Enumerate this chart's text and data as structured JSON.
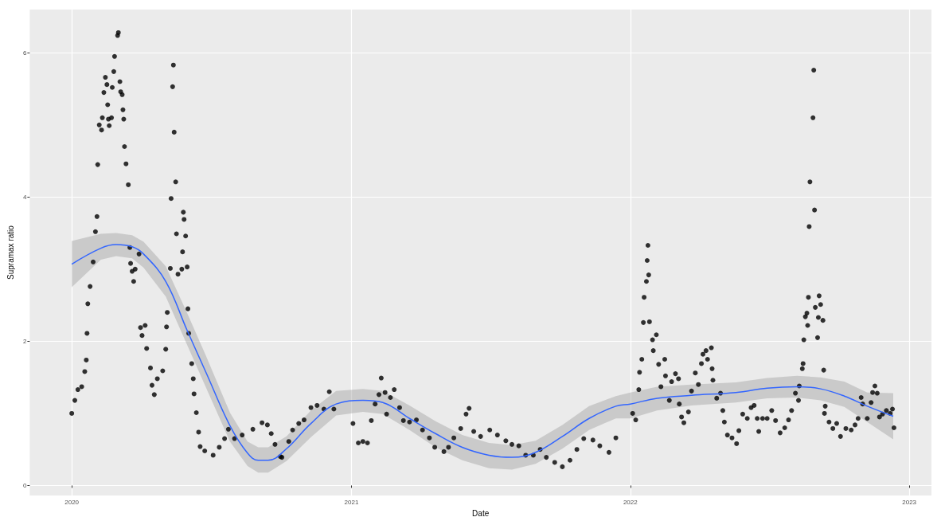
{
  "chart_data": {
    "type": "scatter",
    "xlabel": "Date",
    "ylabel": "Supramax ratio",
    "grid": true,
    "xlim": [
      "2019-11-07",
      "2023-01-30"
    ],
    "xticks": [
      "2020",
      "2021",
      "2022",
      "2023"
    ],
    "ylim": [
      -0.14,
      6.6
    ],
    "yticks": [
      0,
      2,
      4,
      6
    ],
    "x": [
      "2020-01-01",
      "2020-01-05",
      "2020-01-09",
      "2020-01-14",
      "2020-01-18",
      "2020-01-20",
      "2020-01-21",
      "2020-01-22",
      "2020-01-25",
      "2020-01-29",
      "2020-02-01",
      "2020-02-03",
      "2020-02-04",
      "2020-02-06",
      "2020-02-09",
      "2020-02-10",
      "2020-02-12",
      "2020-02-14",
      "2020-02-16",
      "2020-02-17",
      "2020-02-18",
      "2020-02-19",
      "2020-02-22",
      "2020-02-23",
      "2020-02-25",
      "2020-02-26",
      "2020-03-01",
      "2020-03-02",
      "2020-03-04",
      "2020-03-05",
      "2020-03-07",
      "2020-03-08",
      "2020-03-09",
      "2020-03-10",
      "2020-03-12",
      "2020-03-15",
      "2020-03-17",
      "2020-03-18",
      "2020-03-20",
      "2020-03-22",
      "2020-03-24",
      "2020-03-29",
      "2020-03-31",
      "2020-04-02",
      "2020-04-06",
      "2020-04-08",
      "2020-04-13",
      "2020-04-15",
      "2020-04-18",
      "2020-04-22",
      "2020-04-29",
      "2020-05-03",
      "2020-05-04",
      "2020-05-05",
      "2020-05-10",
      "2020-05-12",
      "2020-05-13",
      "2020-05-14",
      "2020-05-16",
      "2020-05-17",
      "2020-05-09",
      "2020-05-19",
      "2020-05-24",
      "2020-05-26",
      "2020-05-27",
      "2020-05-25",
      "2020-05-29",
      "2020-05-31",
      "2020-06-01",
      "2020-06-02",
      "2020-06-06",
      "2020-06-08",
      "2020-06-09",
      "2020-06-12",
      "2020-06-15",
      "2020-06-17",
      "2020-06-23",
      "2020-07-04",
      "2020-07-12",
      "2020-07-19",
      "2020-07-24",
      "2020-08-01",
      "2020-08-11",
      "2020-08-25",
      "2020-09-06",
      "2020-09-13",
      "2020-09-18",
      "2020-09-23",
      "2020-09-30",
      "2020-10-02",
      "2020-10-11",
      "2020-10-16",
      "2020-10-24",
      "2020-10-31",
      "2020-11-09",
      "2020-11-17",
      "2020-11-26",
      "2020-12-03",
      "2020-12-09",
      "2021-01-03",
      "2021-01-10",
      "2021-01-16",
      "2021-01-22",
      "2021-01-27",
      "2021-02-01",
      "2021-02-06",
      "2021-02-09",
      "2021-02-14",
      "2021-02-16",
      "2021-02-21",
      "2021-02-26",
      "2021-03-05",
      "2021-03-10",
      "2021-03-18",
      "2021-03-27",
      "2021-04-04",
      "2021-04-13",
      "2021-04-20",
      "2021-05-02",
      "2021-05-08",
      "2021-05-15",
      "2021-05-24",
      "2021-05-31",
      "2021-06-04",
      "2021-06-10",
      "2021-06-19",
      "2021-07-01",
      "2021-07-11",
      "2021-07-22",
      "2021-07-30",
      "2021-08-08",
      "2021-08-17",
      "2021-08-27",
      "2021-09-05",
      "2021-09-13",
      "2021-09-24",
      "2021-10-04",
      "2021-10-14",
      "2021-10-23",
      "2021-11-01",
      "2021-11-13",
      "2021-11-22",
      "2021-12-04",
      "2021-12-13",
      "2022-01-04",
      "2022-01-08",
      "2022-01-12",
      "2022-01-13",
      "2022-01-16",
      "2022-01-18",
      "2022-01-19",
      "2022-01-22",
      "2022-01-23",
      "2022-01-24",
      "2022-01-25",
      "2022-01-26",
      "2022-01-30",
      "2022-01-31",
      "2022-02-04",
      "2022-02-07",
      "2022-02-10",
      "2022-02-15",
      "2022-02-16",
      "2022-02-21",
      "2022-02-24",
      "2022-03-01",
      "2022-03-05",
      "2022-03-06",
      "2022-03-09",
      "2022-03-12",
      "2022-03-18",
      "2022-03-22",
      "2022-03-27",
      "2022-03-31",
      "2022-04-04",
      "2022-04-06",
      "2022-04-10",
      "2022-04-12",
      "2022-04-17",
      "2022-04-18",
      "2022-04-19",
      "2022-04-24",
      "2022-04-29",
      "2022-05-02",
      "2022-05-04",
      "2022-05-08",
      "2022-05-14",
      "2022-05-20",
      "2022-05-23",
      "2022-05-28",
      "2022-06-03",
      "2022-06-08",
      "2022-06-12",
      "2022-06-16",
      "2022-06-18",
      "2022-06-23",
      "2022-06-29",
      "2022-07-05",
      "2022-07-10",
      "2022-07-16",
      "2022-07-22",
      "2022-07-27",
      "2022-07-31",
      "2022-08-05",
      "2022-08-09",
      "2022-08-10",
      "2022-08-14",
      "2022-08-15",
      "2022-08-16",
      "2022-08-18",
      "2022-08-20",
      "2022-08-22",
      "2022-08-21",
      "2022-08-23",
      "2022-08-24",
      "2022-08-28",
      "2022-08-29",
      "2022-08-30",
      "2022-08-31",
      "2022-09-03",
      "2022-09-04",
      "2022-09-05",
      "2022-09-07",
      "2022-09-10",
      "2022-09-11",
      "2022-09-13",
      "2022-09-12",
      "2022-09-18",
      "2022-09-23",
      "2022-09-28",
      "2022-10-03",
      "2022-10-10",
      "2022-10-17",
      "2022-10-22",
      "2022-10-26",
      "2022-10-30",
      "2022-11-01",
      "2022-11-07",
      "2022-11-12",
      "2022-11-14",
      "2022-11-17",
      "2022-11-20",
      "2022-11-23",
      "2022-11-27",
      "2022-12-02",
      "2022-12-07",
      "2022-12-10",
      "2022-12-12"
    ],
    "series": [
      {
        "color": "#000000",
        "marker": "circle",
        "values": [
          1.0,
          1.18,
          1.33,
          1.37,
          1.58,
          1.74,
          2.11,
          2.52,
          2.76,
          3.1,
          3.52,
          3.73,
          4.45,
          5.0,
          4.93,
          5.1,
          5.45,
          5.66,
          5.56,
          5.28,
          5.08,
          4.99,
          5.1,
          5.52,
          5.74,
          5.95,
          6.24,
          6.28,
          5.6,
          5.46,
          5.42,
          5.21,
          5.08,
          4.7,
          4.46,
          4.17,
          3.3,
          3.08,
          2.97,
          2.83,
          3.0,
          3.21,
          2.19,
          2.08,
          2.22,
          1.9,
          1.63,
          1.39,
          1.26,
          1.48,
          1.59,
          1.89,
          2.2,
          2.4,
          3.98,
          5.53,
          5.83,
          4.9,
          4.21,
          3.49,
          3.01,
          2.93,
          3.0,
          3.79,
          3.69,
          3.24,
          3.46,
          3.03,
          2.45,
          2.11,
          1.69,
          1.48,
          1.27,
          1.01,
          0.74,
          0.54,
          0.48,
          0.42,
          0.53,
          0.65,
          0.78,
          0.65,
          0.7,
          0.78,
          0.87,
          0.84,
          0.72,
          0.57,
          0.4,
          0.39,
          0.61,
          0.77,
          0.86,
          0.91,
          1.08,
          1.11,
          1.06,
          1.3,
          1.06,
          0.86,
          0.59,
          0.61,
          0.59,
          0.9,
          1.13,
          1.26,
          1.49,
          1.29,
          0.99,
          1.22,
          1.33,
          1.08,
          0.9,
          0.88,
          0.91,
          0.77,
          0.66,
          0.53,
          0.47,
          0.53,
          0.66,
          0.79,
          0.99,
          1.07,
          0.75,
          0.68,
          0.77,
          0.7,
          0.62,
          0.57,
          0.55,
          0.42,
          0.42,
          0.5,
          0.39,
          0.32,
          0.26,
          0.35,
          0.5,
          0.65,
          0.63,
          0.55,
          0.46,
          0.66,
          1.0,
          0.91,
          1.33,
          1.57,
          1.75,
          2.26,
          2.61,
          2.83,
          3.12,
          3.33,
          2.92,
          2.27,
          2.02,
          1.87,
          2.09,
          1.68,
          1.37,
          1.75,
          1.52,
          1.18,
          1.44,
          1.55,
          1.48,
          1.13,
          0.95,
          0.87,
          1.02,
          1.31,
          1.56,
          1.4,
          1.69,
          1.82,
          1.87,
          1.75,
          1.91,
          1.62,
          1.46,
          1.21,
          1.28,
          1.04,
          0.88,
          0.7,
          0.66,
          0.58,
          0.76,
          0.99,
          0.93,
          1.08,
          1.11,
          0.93,
          0.75,
          0.93,
          0.93,
          1.04,
          0.9,
          0.73,
          0.8,
          0.91,
          1.04,
          1.28,
          1.18,
          1.38,
          1.62,
          1.69,
          2.02,
          2.34,
          2.39,
          2.61,
          2.22,
          3.59,
          4.21,
          5.1,
          5.76,
          3.82,
          2.47,
          2.05,
          2.33,
          2.63,
          2.51,
          2.29,
          1.6,
          1.1,
          1.0,
          0.88,
          0.79,
          0.86,
          0.68,
          0.79,
          0.77,
          0.84,
          0.93,
          1.22,
          1.13,
          0.93,
          1.15,
          1.29,
          1.38,
          1.28,
          0.95,
          0.99,
          1.04,
          1.0,
          1.06,
          0.8
        ]
      },
      {
        "type": "line",
        "color": "#3366ff",
        "marker": "none",
        "x": [
          "2020-01-01",
          "2020-02-08",
          "2020-02-28",
          "2020-03-20",
          "2020-04-04",
          "2020-05-03",
          "2020-05-31",
          "2020-06-25",
          "2020-07-26",
          "2020-08-18",
          "2020-09-01",
          "2020-09-14",
          "2020-10-08",
          "2020-11-09",
          "2020-12-12",
          "2021-01-16",
          "2021-02-11",
          "2021-03-18",
          "2021-04-21",
          "2021-05-26",
          "2021-06-30",
          "2021-07-30",
          "2021-08-30",
          "2021-10-04",
          "2021-11-08",
          "2021-12-13",
          "2022-01-01",
          "2022-02-05",
          "2022-03-22",
          "2022-05-19",
          "2022-06-29",
          "2022-08-07",
          "2022-09-07",
          "2022-10-08",
          "2022-11-07",
          "2022-12-11"
        ],
        "values": [
          3.07,
          3.29,
          3.34,
          3.31,
          3.21,
          2.83,
          2.15,
          1.56,
          0.83,
          0.45,
          0.35,
          0.35,
          0.51,
          0.86,
          1.13,
          1.18,
          1.15,
          0.93,
          0.72,
          0.53,
          0.42,
          0.39,
          0.46,
          0.68,
          0.93,
          1.1,
          1.13,
          1.21,
          1.25,
          1.29,
          1.35,
          1.37,
          1.34,
          1.24,
          1.1,
          0.96
        ],
        "lower": [
          2.75,
          3.13,
          3.18,
          3.15,
          3.02,
          2.62,
          1.95,
          1.35,
          0.61,
          0.27,
          0.18,
          0.18,
          0.34,
          0.67,
          0.97,
          1.02,
          0.99,
          0.77,
          0.53,
          0.35,
          0.24,
          0.22,
          0.3,
          0.51,
          0.77,
          0.93,
          0.93,
          1.04,
          1.11,
          1.15,
          1.21,
          1.22,
          1.18,
          1.09,
          0.88,
          0.64
        ],
        "upper": [
          3.39,
          3.49,
          3.5,
          3.47,
          3.38,
          3.04,
          2.39,
          1.79,
          1.01,
          0.61,
          0.53,
          0.53,
          0.68,
          1.04,
          1.31,
          1.34,
          1.31,
          1.11,
          0.89,
          0.7,
          0.59,
          0.56,
          0.62,
          0.84,
          1.1,
          1.24,
          1.29,
          1.37,
          1.4,
          1.43,
          1.49,
          1.52,
          1.5,
          1.44,
          1.29,
          1.28
        ]
      }
    ]
  }
}
